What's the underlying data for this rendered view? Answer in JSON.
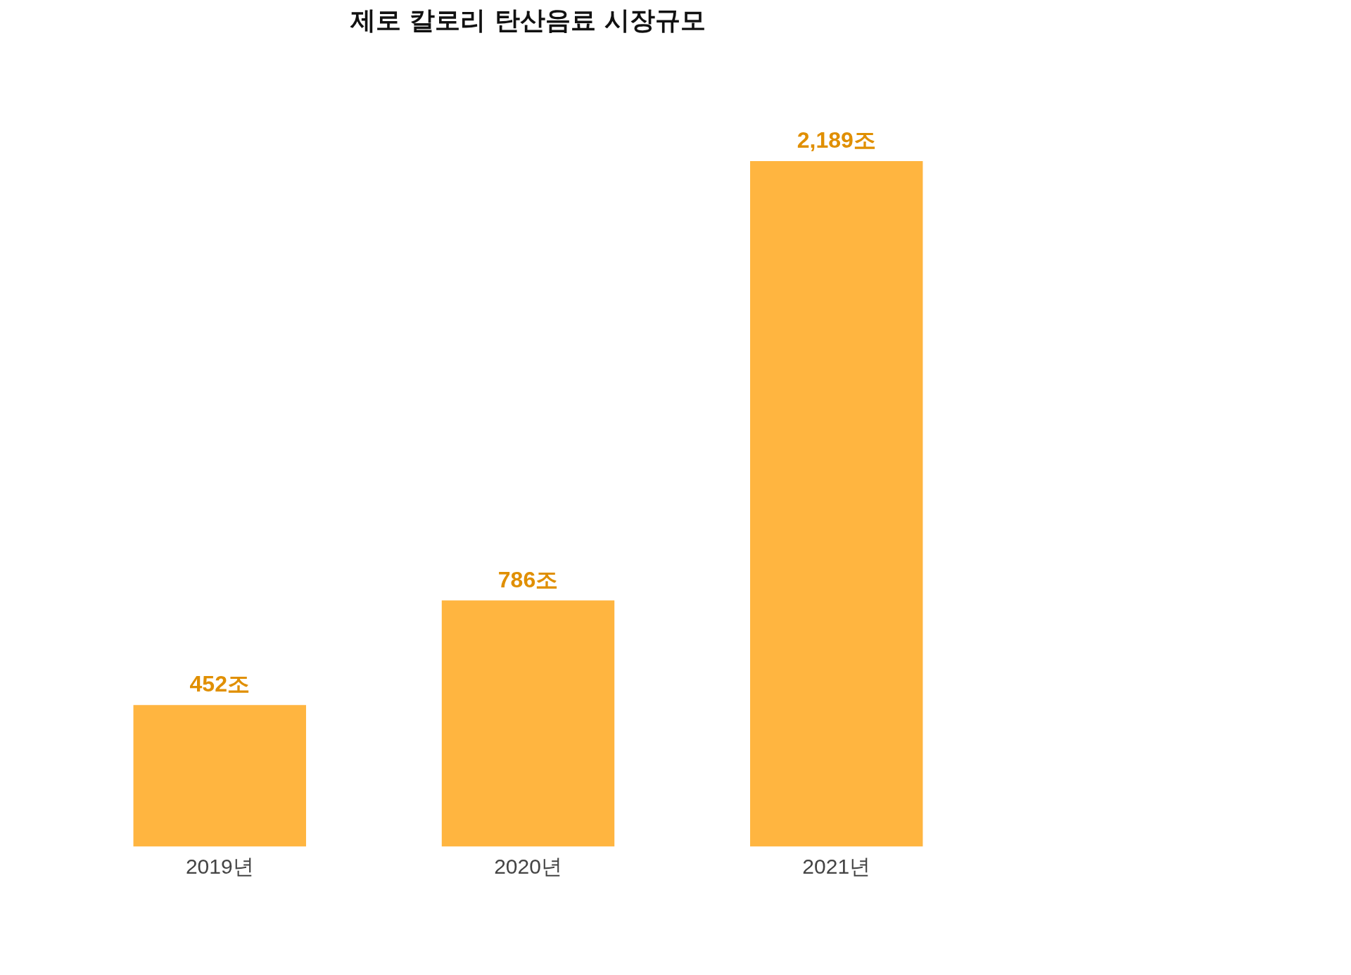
{
  "chart_data": {
    "type": "bar",
    "title": "제로 칼로리 탄산음료 시장규모",
    "categories": [
      "2019년",
      "2020년",
      "2021년"
    ],
    "values": [
      452,
      786,
      2189
    ],
    "value_labels": [
      "452조",
      "786조",
      "2,189조"
    ],
    "color": "#ffb540",
    "grid": false
  }
}
